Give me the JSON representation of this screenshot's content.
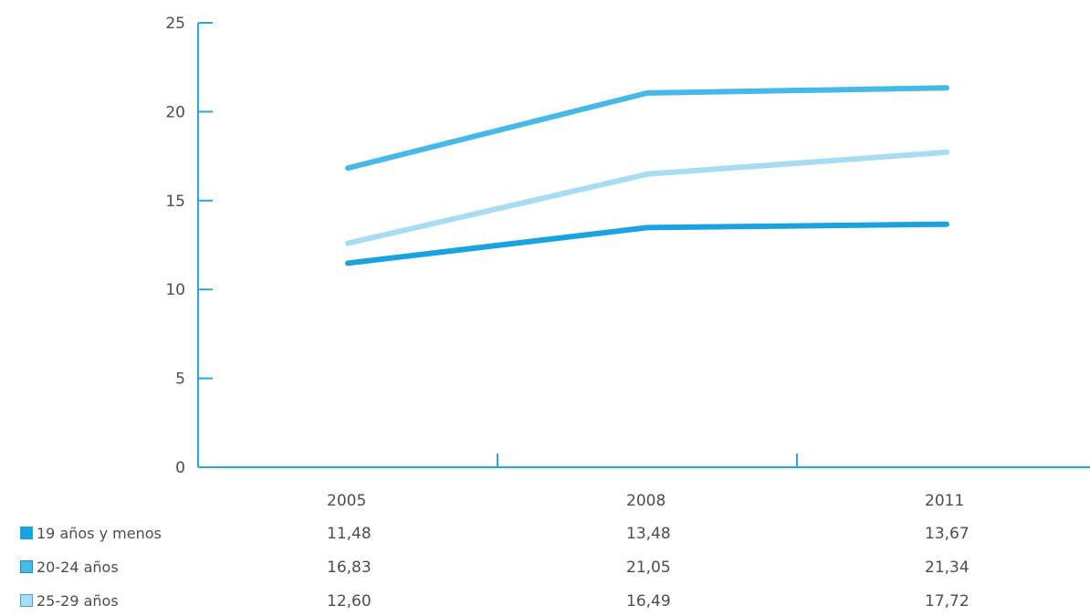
{
  "chart_data": {
    "type": "line",
    "categories": [
      "2005",
      "2008",
      "2011"
    ],
    "ylim": [
      0,
      25
    ],
    "yticks": [
      "0",
      "5",
      "10",
      "15",
      "20",
      "25"
    ],
    "grid": false,
    "series": [
      {
        "name": "19 años y menos",
        "values": [
          11.48,
          13.48,
          13.67
        ],
        "labels": [
          "11,48",
          "13,48",
          "13,67"
        ],
        "color": "#1aa3e0"
      },
      {
        "name": "20-24 años",
        "values": [
          16.83,
          21.05,
          21.34
        ],
        "labels": [
          "16,83",
          "21,05",
          "21,34"
        ],
        "color": "#45b9e8"
      },
      {
        "name": "25-29 años",
        "values": [
          12.6,
          16.49,
          17.72
        ],
        "labels": [
          "12,60",
          "16,49",
          "17,72"
        ],
        "color": "#a7dcf2"
      }
    ],
    "axis_color": "#2aa6d9"
  }
}
